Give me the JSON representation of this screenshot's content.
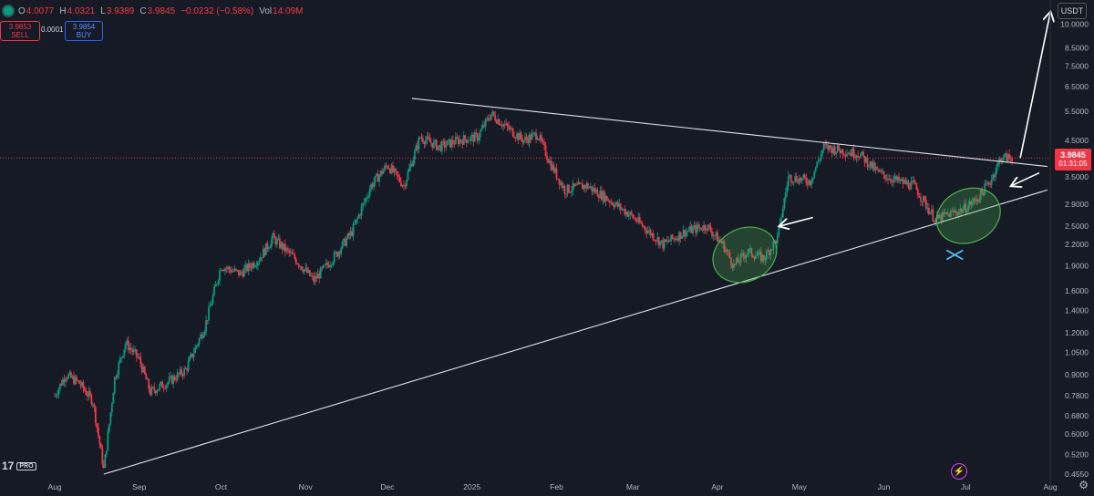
{
  "header": {
    "o_label": "O",
    "o_value": "4.0077",
    "h_label": "H",
    "h_value": "4.0321",
    "l_label": "L",
    "l_value": "3.9389",
    "c_label": "C",
    "c_value": "3.9845",
    "change": "−0.0232 (−0.58%)",
    "vol_label": "Vol",
    "vol_value": "14.09M"
  },
  "trade": {
    "sell_price": "3.9853",
    "sell_label": "SELL",
    "spread": "0.0001",
    "buy_price": "3.9854",
    "buy_label": "BUY"
  },
  "currency": "USDT",
  "last_price": {
    "price": "3.9845",
    "countdown": "01:31:05"
  },
  "logo": {
    "mark": "17",
    "badge": "PRO"
  },
  "colors": {
    "up": "#089981",
    "down": "#f23645",
    "background": "#161a25",
    "drawing": "#e0e3eb",
    "ellipse": "#4caf50"
  },
  "icons": [
    "settings-gear-icon",
    "flash-icon",
    "eye-icon"
  ],
  "chart_data": {
    "type": "candlestick",
    "scale": "log",
    "y_ticks": [
      "10.0000",
      "8.5000",
      "7.5000",
      "6.5000",
      "5.5000",
      "4.5000",
      "3.5000",
      "2.9000",
      "2.5000",
      "2.2000",
      "1.9000",
      "1.6000",
      "1.4000",
      "1.2000",
      "1.0500",
      "0.9000",
      "0.7800",
      "0.6800",
      "0.6000",
      "0.5200",
      "0.4550"
    ],
    "x_ticks": [
      "Aug",
      "Sep",
      "Oct",
      "Nov",
      "Dec",
      "2025",
      "Feb",
      "Mar",
      "Apr",
      "May",
      "Jun",
      "Jul",
      "Aug"
    ],
    "ylim": [
      0.455,
      11.5
    ],
    "xlim": [
      "2024-08-01",
      "2025-08-01"
    ],
    "price_path": [
      [
        "2024-08-01",
        0.78
      ],
      [
        "2024-08-05",
        0.9
      ],
      [
        "2024-08-10",
        0.85
      ],
      [
        "2024-08-15",
        0.75
      ],
      [
        "2024-08-19",
        0.47
      ],
      [
        "2024-08-23",
        0.88
      ],
      [
        "2024-08-27",
        1.12
      ],
      [
        "2024-09-01",
        1.0
      ],
      [
        "2024-09-05",
        0.8
      ],
      [
        "2024-09-12",
        0.86
      ],
      [
        "2024-09-18",
        0.93
      ],
      [
        "2024-09-25",
        1.25
      ],
      [
        "2024-10-01",
        1.9
      ],
      [
        "2024-10-08",
        1.8
      ],
      [
        "2024-10-15",
        2.0
      ],
      [
        "2024-10-20",
        2.3
      ],
      [
        "2024-10-28",
        2.0
      ],
      [
        "2024-11-04",
        1.72
      ],
      [
        "2024-11-11",
        2.0
      ],
      [
        "2024-11-18",
        2.4
      ],
      [
        "2024-11-25",
        3.3
      ],
      [
        "2024-12-01",
        3.8
      ],
      [
        "2024-12-07",
        3.3
      ],
      [
        "2024-12-13",
        4.6
      ],
      [
        "2024-12-20",
        4.3
      ],
      [
        "2024-12-27",
        4.5
      ],
      [
        "2025-01-03",
        4.6
      ],
      [
        "2025-01-08",
        5.4
      ],
      [
        "2025-01-14",
        4.9
      ],
      [
        "2025-01-20",
        4.5
      ],
      [
        "2025-01-25",
        4.7
      ],
      [
        "2025-01-30",
        3.8
      ],
      [
        "2025-02-04",
        3.2
      ],
      [
        "2025-02-12",
        3.3
      ],
      [
        "2025-02-20",
        3.0
      ],
      [
        "2025-02-28",
        2.7
      ],
      [
        "2025-03-07",
        2.4
      ],
      [
        "2025-03-12",
        2.2
      ],
      [
        "2025-03-20",
        2.4
      ],
      [
        "2025-03-28",
        2.5
      ],
      [
        "2025-04-03",
        2.2
      ],
      [
        "2025-04-07",
        1.9
      ],
      [
        "2025-04-12",
        2.1
      ],
      [
        "2025-04-18",
        2.0
      ],
      [
        "2025-04-23",
        2.3
      ],
      [
        "2025-04-27",
        3.5
      ],
      [
        "2025-05-05",
        3.4
      ],
      [
        "2025-05-10",
        4.3
      ],
      [
        "2025-05-16",
        4.2
      ],
      [
        "2025-05-23",
        4.1
      ],
      [
        "2025-05-30",
        3.6
      ],
      [
        "2025-06-06",
        3.4
      ],
      [
        "2025-06-12",
        3.3
      ],
      [
        "2025-06-20",
        2.6
      ],
      [
        "2025-06-24",
        2.7
      ],
      [
        "2025-06-30",
        2.8
      ],
      [
        "2025-07-05",
        3.0
      ],
      [
        "2025-07-10",
        3.4
      ],
      [
        "2025-07-14",
        4.0
      ],
      [
        "2025-07-18",
        3.9845
      ]
    ],
    "annotations": {
      "descending_trendline": [
        [
          "2024-12-10",
          6.0
        ],
        [
          "2025-07-31",
          3.76
        ]
      ],
      "ascending_trendline": [
        [
          "2024-08-19",
          0.455
        ],
        [
          "2025-07-31",
          3.2
        ]
      ],
      "ellipses": [
        {
          "center": [
            "2025-04-11",
            2.05
          ]
        },
        {
          "center": [
            "2025-07-02",
            2.68
          ]
        }
      ],
      "arrows": [
        {
          "from": [
            "2025-05-06",
            2.65
          ],
          "to": [
            "2025-04-24",
            2.5
          ]
        },
        {
          "from": [
            "2025-07-28",
            3.6
          ],
          "to": [
            "2025-07-18",
            3.3
          ]
        },
        {
          "from": [
            "2025-07-21",
            3.9845
          ],
          "to": [
            "2025-08-01",
            10.8
          ]
        }
      ],
      "cross_marker": [
        "2025-06-27",
        2.05
      ],
      "last_price_line": 3.9845
    }
  }
}
